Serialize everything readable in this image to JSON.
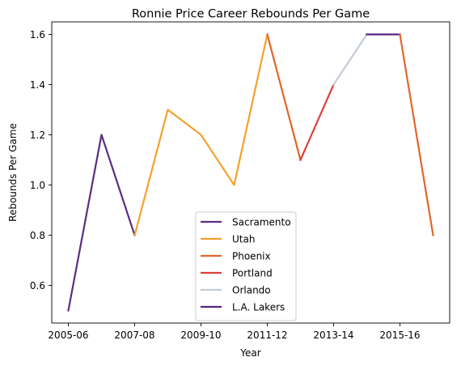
{
  "chart_data": {
    "type": "line",
    "title": "Ronnie Price Career Rebounds Per Game",
    "xlabel": "Year",
    "ylabel": "Rebounds Per Game",
    "x": [
      "2005-06",
      "2006-07",
      "2007-08",
      "2008-09",
      "2009-10",
      "2010-11",
      "2011-12",
      "2012-13",
      "2013-14",
      "2014-15",
      "2015-16",
      "2016-17"
    ],
    "xticks": [
      "2005-06",
      "2007-08",
      "2009-10",
      "2011-12",
      "2013-14",
      "2015-16"
    ],
    "yticks": [
      "0.6",
      "0.8",
      "1.0",
      "1.2",
      "1.4",
      "1.6"
    ],
    "ylim": [
      0.45,
      1.65
    ],
    "grid": false,
    "legend_position": "lower center",
    "series": [
      {
        "name": "Sacramento",
        "color": "#5b2d82",
        "x": [
          "2005-06",
          "2006-07",
          "2007-08"
        ],
        "values": [
          0.5,
          1.2,
          0.8
        ]
      },
      {
        "name": "Utah",
        "color": "#f5a02a",
        "x": [
          "2007-08",
          "2008-09",
          "2009-10",
          "2010-11",
          "2011-12"
        ],
        "values": [
          0.8,
          1.3,
          1.2,
          1.0,
          1.6
        ]
      },
      {
        "name": "Phoenix",
        "color": "#e3652a",
        "x": [
          "2011-12",
          "2012-13"
        ],
        "values": [
          1.6,
          1.1
        ]
      },
      {
        "name": "Portland",
        "color": "#de3e3b",
        "x": [
          "2012-13",
          "2013-14"
        ],
        "values": [
          1.1,
          1.4
        ]
      },
      {
        "name": "Orlando",
        "color": "#c3cdd6",
        "x": [
          "2013-14",
          "2014-15"
        ],
        "values": [
          1.4,
          1.6
        ]
      },
      {
        "name": "L.A. Lakers",
        "color": "#552583",
        "x": [
          "2014-15",
          "2015-16"
        ],
        "values": [
          1.6,
          1.6
        ]
      },
      {
        "name": "",
        "color": "#e3652a",
        "x": [
          "2015-16",
          "2016-17"
        ],
        "values": [
          1.6,
          0.8
        ]
      }
    ]
  }
}
